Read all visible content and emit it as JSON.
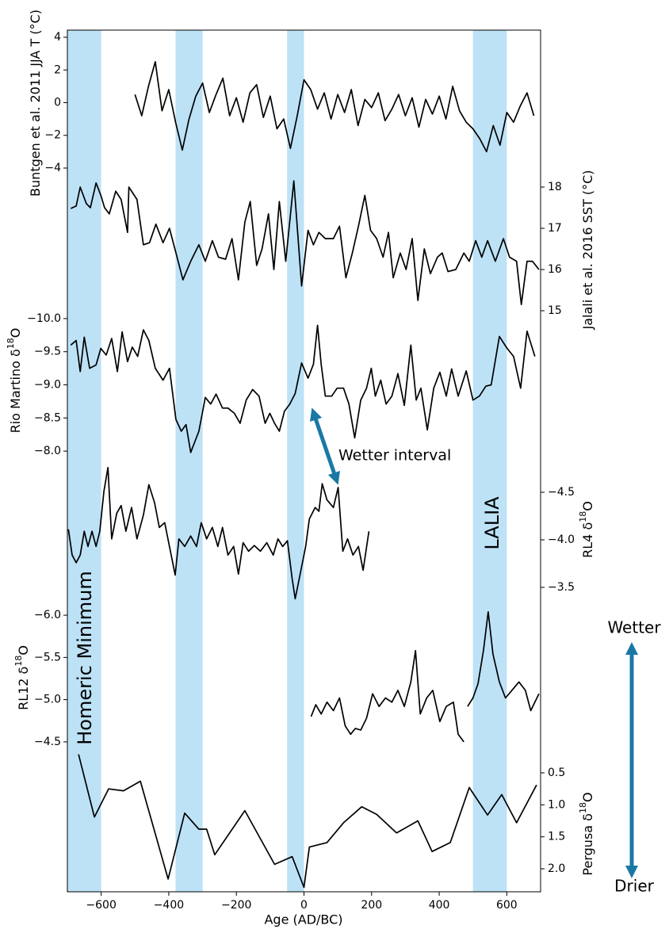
{
  "chart_data": {
    "type": "line",
    "xlabel": "Age (AD/BC)",
    "xlim": [
      -700,
      700
    ],
    "xticks": [
      {
        "value": -600,
        "label": "−600"
      },
      {
        "value": -400,
        "label": "−400"
      },
      {
        "value": -200,
        "label": "−200"
      },
      0,
      200,
      400,
      600
    ],
    "shaded_intervals": [
      [
        -700,
        -600
      ],
      [
        -380,
        -300
      ],
      [
        -50,
        0
      ],
      [
        500,
        600
      ]
    ],
    "shade_color": "#bde2f6",
    "line_color": "#000000",
    "annotations": [
      "Homeric Minimum",
      "LALIA",
      "Wetter interval",
      "Wetter",
      "Drier"
    ],
    "series": [
      {
        "ylabel": [
          "Buntgen et al. 2011 JJA T (°C)"
        ],
        "side": "left",
        "inverted": false,
        "ylim": [
          -4.5,
          4.5
        ],
        "yticks": [
          {
            "value": -4,
            "label": "−4"
          },
          {
            "value": -2,
            "label": "−2"
          },
          0,
          2,
          4
        ],
        "x": [
          -500,
          -480,
          -460,
          -440,
          -420,
          -400,
          -380,
          -360,
          -340,
          -320,
          -300,
          -280,
          -260,
          -240,
          -220,
          -200,
          -180,
          -160,
          -140,
          -120,
          -100,
          -80,
          -60,
          -40,
          -20,
          0,
          20,
          40,
          60,
          80,
          100,
          120,
          140,
          160,
          180,
          200,
          220,
          240,
          260,
          280,
          300,
          320,
          340,
          360,
          380,
          400,
          420,
          440,
          460,
          480,
          500,
          520,
          540,
          560,
          580,
          600,
          620,
          640,
          660,
          680
        ],
        "values": [
          0.5,
          -0.8,
          1.0,
          2.5,
          -0.5,
          0.8,
          -1.2,
          -2.9,
          -1.0,
          0.4,
          1.2,
          -0.6,
          0.5,
          1.5,
          -0.8,
          0.3,
          -1.2,
          0.6,
          1.1,
          -0.9,
          0.4,
          -1.6,
          -1.0,
          -2.8,
          -0.8,
          1.4,
          0.8,
          -0.4,
          0.6,
          -1.0,
          0.5,
          -0.6,
          0.8,
          -1.4,
          0.2,
          -0.3,
          0.6,
          -1.1,
          -0.4,
          0.5,
          -0.8,
          0.3,
          -1.5,
          0.2,
          -0.7,
          0.4,
          -1.0,
          1.0,
          -0.5,
          -1.2,
          -1.6,
          -2.2,
          -3.0,
          -1.4,
          -2.6,
          -0.6,
          -1.2,
          -0.2,
          0.6,
          -0.8
        ]
      },
      {
        "ylabel": [
          "Jalali et al. 2016 SST (°C)"
        ],
        "side": "right",
        "inverted": false,
        "ylim": [
          14.7,
          18.3
        ],
        "yticks": [
          15,
          16,
          17,
          18
        ],
        "x": [
          -690,
          -674,
          -662,
          -644,
          -632,
          -615,
          -601,
          -590,
          -576,
          -557,
          -541,
          -522,
          -518,
          -494,
          -475,
          -457,
          -438,
          -417,
          -398,
          -377,
          -358,
          -335,
          -311,
          -292,
          -271,
          -253,
          -232,
          -213,
          -194,
          -175,
          -159,
          -140,
          -124,
          -105,
          -89,
          -73,
          -54,
          -30,
          -7,
          12,
          28,
          44,
          63,
          87,
          105,
          124,
          143,
          161,
          180,
          197,
          215,
          234,
          250,
          264,
          285,
          302,
          320,
          337,
          356,
          374,
          395,
          409,
          426,
          449,
          473,
          489,
          508,
          526,
          543,
          566,
          590,
          608,
          629,
          643,
          660,
          676,
          695
        ],
        "values": [
          17.48,
          17.54,
          18.0,
          17.6,
          17.5,
          18.1,
          17.8,
          17.5,
          17.35,
          17.9,
          17.7,
          16.9,
          18.0,
          17.7,
          16.6,
          16.65,
          17.1,
          16.65,
          17.0,
          16.35,
          15.75,
          16.2,
          16.6,
          16.2,
          16.7,
          16.3,
          16.25,
          16.75,
          15.75,
          17.15,
          17.65,
          16.1,
          16.5,
          17.35,
          16.0,
          17.65,
          16.2,
          18.15,
          15.6,
          16.95,
          16.6,
          16.9,
          16.75,
          16.75,
          17.05,
          15.8,
          16.4,
          17.05,
          17.8,
          16.95,
          16.75,
          16.3,
          16.9,
          15.8,
          16.4,
          16.0,
          16.75,
          15.25,
          16.5,
          15.9,
          16.3,
          16.4,
          15.95,
          16.0,
          16.4,
          16.2,
          16.7,
          16.3,
          16.7,
          16.2,
          16.75,
          16.3,
          16.2,
          15.15,
          16.2,
          16.2,
          16.0
        ]
      },
      {
        "ylabel": [
          "Rio Martino δ",
          "18",
          "O"
        ],
        "side": "left",
        "inverted": true,
        "ylim": [
          -10.2,
          -7.8
        ],
        "yticks": [
          {
            "value": -10,
            "label": "−10.0"
          },
          {
            "value": -9.5,
            "label": "−9.5"
          },
          {
            "value": -9,
            "label": "−9.0"
          },
          {
            "value": -8.5,
            "label": "−8.5"
          },
          {
            "value": -8,
            "label": "−8.0"
          }
        ],
        "x": [
          -690,
          -674,
          -662,
          -650,
          -634,
          -615,
          -601,
          -585,
          -569,
          -552,
          -538,
          -522,
          -508,
          -492,
          -475,
          -459,
          -440,
          -417,
          -398,
          -379,
          -363,
          -349,
          -335,
          -311,
          -292,
          -276,
          -260,
          -241,
          -225,
          -206,
          -189,
          -171,
          -152,
          -133,
          -115,
          -101,
          -87,
          -73,
          -58,
          -42,
          -26,
          -7,
          12,
          28,
          40,
          51,
          63,
          82,
          98,
          117,
          133,
          150,
          168,
          185,
          199,
          211,
          227,
          243,
          260,
          278,
          297,
          316,
          332,
          346,
          365,
          384,
          402,
          421,
          437,
          456,
          480,
          500,
          519,
          538,
          554,
          578,
          601,
          620,
          641,
          660,
          683
        ],
        "values": [
          -9.6,
          -9.67,
          -9.2,
          -9.72,
          -9.25,
          -9.3,
          -9.55,
          -9.45,
          -9.7,
          -9.2,
          -9.8,
          -9.35,
          -9.57,
          -9.43,
          -9.83,
          -9.67,
          -9.25,
          -9.07,
          -9.25,
          -8.48,
          -8.3,
          -8.4,
          -7.98,
          -8.3,
          -8.81,
          -8.71,
          -8.86,
          -8.65,
          -8.65,
          -8.57,
          -8.42,
          -8.77,
          -8.93,
          -8.83,
          -8.42,
          -8.57,
          -8.42,
          -8.3,
          -8.6,
          -8.71,
          -8.87,
          -9.33,
          -9.1,
          -9.31,
          -9.9,
          -9.31,
          -8.83,
          -8.83,
          -8.95,
          -8.95,
          -8.71,
          -8.2,
          -8.77,
          -8.95,
          -9.25,
          -8.83,
          -9.07,
          -8.71,
          -8.83,
          -9.17,
          -8.69,
          -9.6,
          -8.77,
          -8.95,
          -8.32,
          -8.95,
          -9.19,
          -8.83,
          -9.24,
          -8.83,
          -9.21,
          -8.77,
          -8.83,
          -8.98,
          -9.0,
          -9.73,
          -9.55,
          -9.43,
          -8.95,
          -9.81,
          -9.43
        ]
      },
      {
        "ylabel": [
          "RL4 δ",
          "18",
          "O"
        ],
        "side": "right",
        "inverted": true,
        "ylim": [
          -4.9,
          -3.3
        ],
        "yticks": [
          {
            "value": -4.5,
            "label": "−4.5"
          },
          {
            "value": -4,
            "label": "−4.0"
          },
          {
            "value": -3.5,
            "label": "−3.5"
          }
        ],
        "x": [
          -697,
          -686,
          -674,
          -662,
          -650,
          -639,
          -627,
          -615,
          -604,
          -592,
          -580,
          -569,
          -554,
          -541,
          -527,
          -510,
          -494,
          -475,
          -459,
          -442,
          -428,
          -412,
          -398,
          -381,
          -370,
          -353,
          -335,
          -318,
          -304,
          -288,
          -271,
          -255,
          -241,
          -225,
          -208,
          -194,
          -180,
          -164,
          -147,
          -129,
          -110,
          -91,
          -77,
          -63,
          -49,
          -35,
          -26,
          -14,
          5,
          16,
          33,
          44,
          54,
          68,
          87,
          101,
          115,
          129,
          145,
          161,
          175,
          192
        ],
        "values": [
          -4.11,
          -3.84,
          -3.76,
          -3.84,
          -4.09,
          -3.93,
          -4.09,
          -3.93,
          -4.09,
          -4.51,
          -4.76,
          -4.01,
          -4.28,
          -4.36,
          -4.09,
          -4.34,
          -4.01,
          -4.26,
          -4.58,
          -4.39,
          -4.13,
          -4.18,
          -3.93,
          -3.63,
          -4.01,
          -3.93,
          -4.04,
          -3.93,
          -4.18,
          -4.01,
          -4.13,
          -3.93,
          -4.13,
          -3.84,
          -3.93,
          -3.64,
          -3.97,
          -3.88,
          -3.94,
          -3.88,
          -3.97,
          -3.84,
          -4.01,
          -3.93,
          -3.99,
          -3.59,
          -3.38,
          -3.59,
          -3.93,
          -4.22,
          -4.34,
          -4.3,
          -4.59,
          -4.42,
          -4.34,
          -4.55,
          -3.88,
          -4.01,
          -3.84,
          -3.93,
          -3.68,
          -4.09
        ]
      },
      {
        "ylabel": [
          "RL12 δ",
          "18",
          "O"
        ],
        "side": "left",
        "inverted": true,
        "ylim": [
          -6.2,
          -4.3
        ],
        "yticks": [
          {
            "value": -6,
            "label": "−6.0"
          },
          {
            "value": -5.5,
            "label": "−5.5"
          },
          {
            "value": -5,
            "label": "−5.0"
          },
          {
            "value": -4.5,
            "label": "−4.5"
          }
        ],
        "x": [
          21,
          35,
          51,
          68,
          87,
          105,
          122,
          138,
          152,
          168,
          185,
          203,
          222,
          241,
          260,
          278,
          297,
          316,
          330,
          344,
          363,
          381,
          402,
          421,
          442,
          456,
          473,
          478,
          484,
          500,
          515,
          531,
          545,
          559,
          578,
          596,
          615,
          636,
          655,
          671,
          695
        ],
        "values": [
          -4.8,
          -4.94,
          -4.83,
          -4.97,
          -4.87,
          -5.02,
          -4.69,
          -4.59,
          -4.66,
          -4.64,
          -4.78,
          -5.07,
          -4.92,
          -5.02,
          -4.97,
          -5.11,
          -4.92,
          -5.21,
          -5.58,
          -4.83,
          -5.02,
          -5.11,
          -4.74,
          -4.92,
          -4.97,
          -4.59,
          -4.5,
          null,
          -4.92,
          -5.02,
          -5.19,
          -5.58,
          -6.04,
          -5.54,
          -5.21,
          -5.02,
          -5.11,
          -5.21,
          -5.11,
          -4.87,
          -5.07
        ]
      },
      {
        "ylabel": [
          "Pergusa δ",
          "18",
          "O"
        ],
        "side": "right",
        "inverted": true,
        "ylim": [
          0.1,
          2.4
        ],
        "yticks": [
          0.5,
          {
            "value": 1,
            "label": "1.0"
          },
          1.5,
          {
            "value": 2,
            "label": "2.0"
          }
        ],
        "x": [
          -667,
          -620,
          -578,
          -534,
          -484,
          -402,
          -353,
          -311,
          -288,
          -264,
          -175,
          -87,
          -35,
          0,
          16,
          68,
          117,
          171,
          215,
          274,
          337,
          379,
          433,
          489,
          543,
          585,
          629,
          688
        ],
        "values": [
          0.21,
          1.19,
          0.75,
          0.78,
          0.63,
          2.16,
          1.13,
          1.38,
          1.38,
          1.78,
          1.09,
          1.93,
          1.81,
          2.29,
          1.66,
          1.59,
          1.28,
          1.03,
          1.15,
          1.44,
          1.25,
          1.73,
          1.59,
          0.73,
          1.16,
          0.84,
          1.28,
          0.69
        ]
      }
    ]
  }
}
